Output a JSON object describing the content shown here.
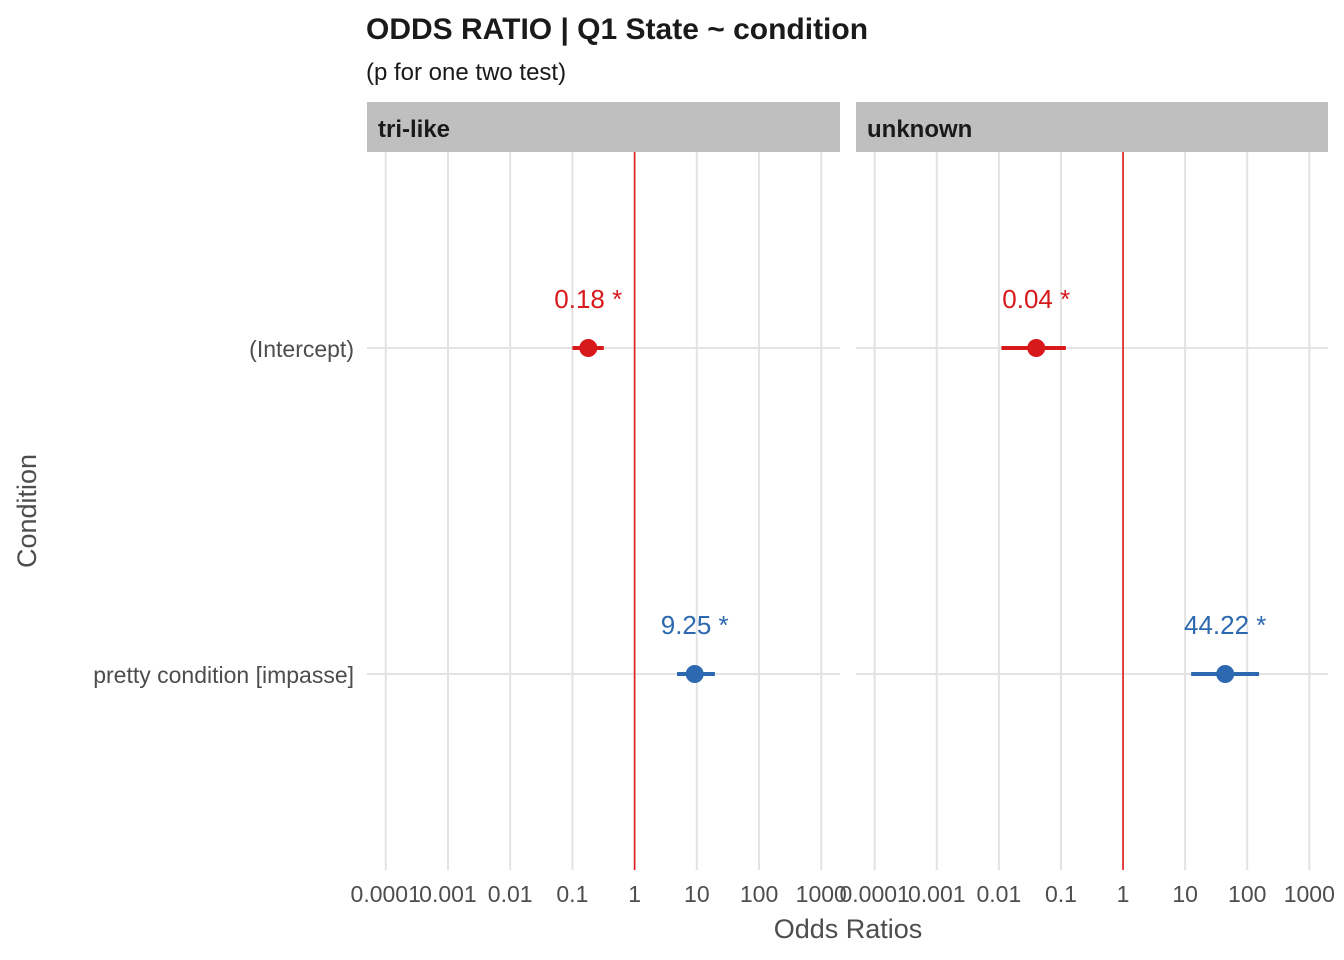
{
  "chart_data": {
    "type": "forest",
    "title": "ODDS RATIO | Q1 State ~ condition",
    "subtitle": "(p for one two test)",
    "xlabel": "Odds Ratios",
    "ylabel": "Condition",
    "x_scale": "log10",
    "xlim": [
      5e-05,
      2000
    ],
    "x_ticks": [
      0.0001,
      0.001,
      0.01,
      0.1,
      1,
      10,
      100,
      1000
    ],
    "x_tick_labels": [
      "0.0001",
      "0.001",
      "0.01",
      "0.1",
      "1",
      "10",
      "100",
      "1000"
    ],
    "reference_line": 1,
    "reference_color": "#e41a1c",
    "categories": [
      "(Intercept)",
      "pretty condition [impasse]"
    ],
    "grid": true,
    "panels": [
      {
        "name": "tri-like",
        "points": [
          {
            "term": "(Intercept)",
            "estimate": 0.18,
            "ci_low": 0.1,
            "ci_high": 0.32,
            "label": "0.18 *",
            "color": "#d7191c"
          },
          {
            "term": "pretty condition [impasse]",
            "estimate": 9.25,
            "ci_low": 4.8,
            "ci_high": 19.5,
            "label": "9.25 *",
            "color": "#2c69b0"
          }
        ]
      },
      {
        "name": "unknown",
        "points": [
          {
            "term": "(Intercept)",
            "estimate": 0.04,
            "ci_low": 0.011,
            "ci_high": 0.12,
            "label": "0.04 *",
            "color": "#d7191c"
          },
          {
            "term": "pretty condition [impasse]",
            "estimate": 44.22,
            "ci_low": 12.5,
            "ci_high": 155,
            "label": "44.22 *",
            "color": "#2c69b0"
          }
        ]
      }
    ]
  }
}
